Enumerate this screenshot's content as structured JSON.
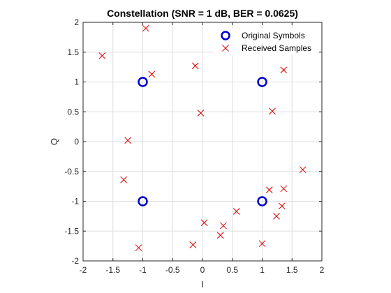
{
  "chart_data": {
    "type": "scatter",
    "title": "Constellation (SNR = 1 dB, BER = 0.0625)",
    "xlabel": "I",
    "ylabel": "Q",
    "xlim": [
      -2,
      2
    ],
    "ylim": [
      -2,
      2
    ],
    "xticks": [
      -2,
      -1.5,
      -1,
      -0.5,
      0,
      0.5,
      1,
      1.5,
      2
    ],
    "yticks": [
      -2,
      -1.5,
      -1,
      -0.5,
      0,
      0.5,
      1,
      1.5,
      2
    ],
    "xtick_labels": [
      "-2",
      "-1.5",
      "-1",
      "-0.5",
      "0",
      "0.5",
      "1",
      "1.5",
      "2"
    ],
    "ytick_labels": [
      "-2",
      "-1.5",
      "-1",
      "-0.5",
      "0",
      "0.5",
      "1",
      "1.5",
      "2"
    ],
    "grid": true,
    "legend_position": "top-right",
    "series": [
      {
        "name": "Original Symbols",
        "marker": "circle",
        "color": "#0000cc",
        "points": [
          [
            -1,
            1
          ],
          [
            1,
            1
          ],
          [
            -1,
            -1
          ],
          [
            1,
            -1
          ]
        ]
      },
      {
        "name": "Received Samples",
        "marker": "x",
        "color": "#dd0000",
        "points": [
          [
            -0.95,
            1.9
          ],
          [
            -1.68,
            1.44
          ],
          [
            -0.85,
            1.13
          ],
          [
            -0.12,
            1.27
          ],
          [
            1.36,
            1.2
          ],
          [
            -0.03,
            0.48
          ],
          [
            1.17,
            0.51
          ],
          [
            -1.25,
            0.02
          ],
          [
            -1.32,
            -0.64
          ],
          [
            1.68,
            -0.47
          ],
          [
            1.12,
            -0.81
          ],
          [
            1.36,
            -0.79
          ],
          [
            1.33,
            -1.08
          ],
          [
            1.24,
            -1.25
          ],
          [
            0.57,
            -1.17
          ],
          [
            0.03,
            -1.36
          ],
          [
            0.35,
            -1.41
          ],
          [
            0.3,
            -1.57
          ],
          [
            -0.16,
            -1.73
          ],
          [
            -1.07,
            -1.78
          ],
          [
            1.0,
            -1.71
          ]
        ]
      }
    ]
  }
}
